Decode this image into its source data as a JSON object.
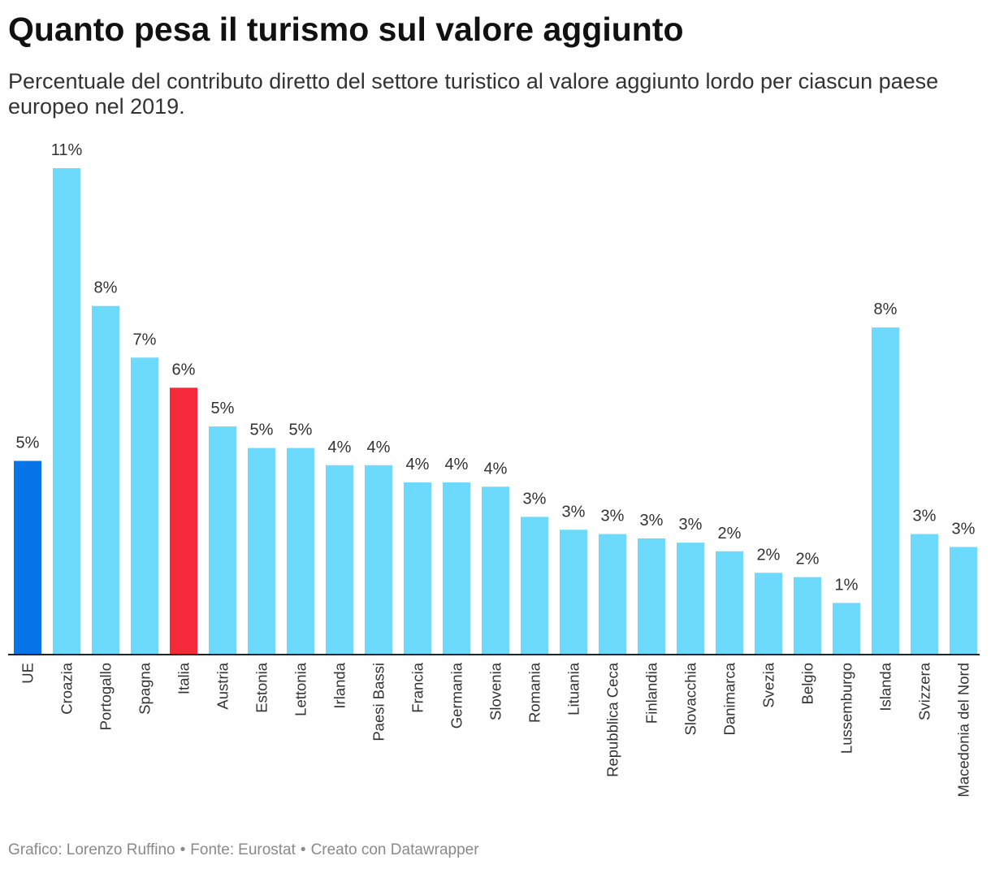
{
  "chart_data": {
    "type": "bar",
    "title": "Quanto pesa il turismo sul valore aggiunto",
    "subtitle": "Percentuale del contributo diretto del settore turistico al valore aggiunto lordo per ciascun paese europeo nel 2019.",
    "ylim": [
      0,
      12
    ],
    "grid": false,
    "categories": [
      "UE",
      "Croazia",
      "Portogallo",
      "Spagna",
      "Italia",
      "Austria",
      "Estonia",
      "Lettonia",
      "Irlanda",
      "Paesi Bassi",
      "Francia",
      "Germania",
      "Slovenia",
      "Romania",
      "Lituania",
      "Repubblica Ceca",
      "Finlandia",
      "Slovacchia",
      "Danimarca",
      "Svezia",
      "Belgio",
      "Lussemburgo",
      "Islanda",
      "Svizzera",
      "Macedonia del Nord"
    ],
    "values": [
      4.5,
      11.3,
      8.1,
      6.9,
      6.2,
      5.3,
      4.8,
      4.8,
      4.4,
      4.4,
      4.0,
      4.0,
      3.9,
      3.2,
      2.9,
      2.8,
      2.7,
      2.6,
      2.4,
      1.9,
      1.8,
      1.2,
      7.6,
      2.8,
      2.5
    ],
    "labels": [
      "5%",
      "11%",
      "8%",
      "7%",
      "6%",
      "5%",
      "5%",
      "5%",
      "4%",
      "4%",
      "4%",
      "4%",
      "4%",
      "3%",
      "3%",
      "3%",
      "3%",
      "3%",
      "2%",
      "2%",
      "2%",
      "1%",
      "8%",
      "3%",
      "3%"
    ],
    "colors": {
      "default": "#6dd9fb",
      "UE": "#0774e8",
      "Italia": "#f42a3a"
    }
  },
  "footer": {
    "byline": "Grafico: Lorenzo Ruffino",
    "separator": "•",
    "source_label": "Fonte:",
    "source_name": "Eurostat",
    "made_with": "Creato con Datawrapper"
  }
}
